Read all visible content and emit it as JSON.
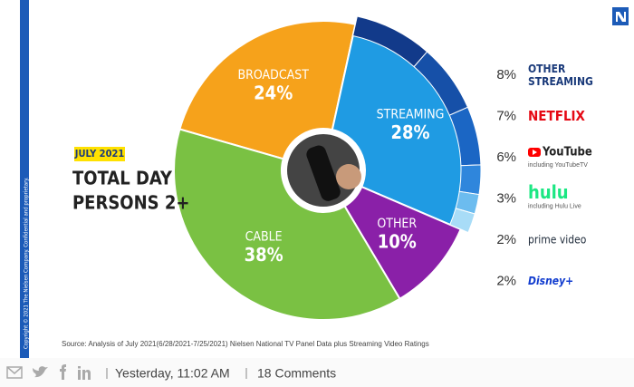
{
  "chart_data": {
    "type": "pie",
    "categories": [
      "BROADCAST",
      "STREAMING",
      "OTHER",
      "CABLE"
    ],
    "values": [
      24,
      28,
      10,
      38
    ],
    "value_labels": [
      "24%",
      "28%",
      "10%",
      "38%"
    ],
    "colors": [
      "#f6a21b",
      "#1f9be3",
      "#8a20a8",
      "#7ac143"
    ],
    "annotations": [
      "JULY 2021",
      "TOTAL DAY",
      "PERSONS 2+"
    ],
    "breakdown": {
      "names": [
        "OTHER STREAMING",
        "NETFLIX",
        "YouTube",
        "hulu",
        "prime video",
        "Disney+"
      ],
      "notes": [
        null,
        null,
        "including YouTubeTV",
        "including Hulu Live",
        null,
        null
      ],
      "values": [
        8,
        7,
        6,
        3,
        2,
        2
      ],
      "value_labels": [
        "8%",
        "7%",
        "6%",
        "3%",
        "2%",
        "2%"
      ],
      "colors": [
        "#123a8a",
        "#1650a8",
        "#1b66c4",
        "#2f86dc",
        "#6cbcef",
        "#a8dcf7"
      ]
    },
    "source": "Source: Analysis of July 2021(6/28/2021-7/25/2021)  Nielsen National TV Panel Data plus Streaming Video Ratings",
    "copyright": "Copyright © 2021 The Nielsen Company. Confidential and proprietary."
  },
  "footer": {
    "time": "Yesterday, 11:02 AM",
    "comments": "18 Comments"
  }
}
